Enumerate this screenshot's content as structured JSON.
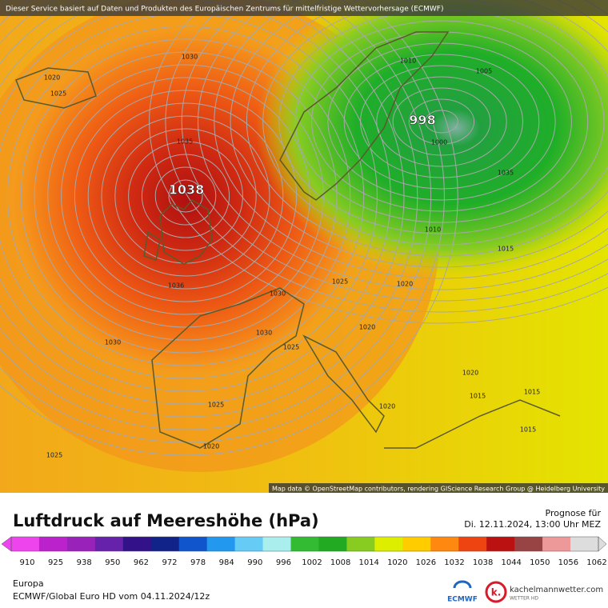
{
  "header": {
    "disclaimer": "Dieser Service basiert auf Daten und Produkten des Europäischen Zentrums für mittelfristige Wettervorhersage (ECMWF)"
  },
  "map": {
    "isobar_labels": [
      "1030",
      "1020",
      "1025",
      "1010",
      "1005",
      "998",
      "1035",
      "1000",
      "1035",
      "1038",
      "1010",
      "1015",
      "1036",
      "1025",
      "1020",
      "1030",
      "1030",
      "1030",
      "1025",
      "1020",
      "1020",
      "1015",
      "1015",
      "1025",
      "1020",
      "1015",
      "1020",
      "1025"
    ],
    "attribution": "Map data © OpenStreetMap contributors, rendering GIScience Research Group @ Heidelberg University"
  },
  "legend": {
    "title": "Luftdruck auf Meereshöhe (hPa)",
    "forecast_label": "Prognose für",
    "forecast_time": "Di. 12.11.2024, 13:00 Uhr MEZ",
    "ticks": [
      910,
      925,
      938,
      950,
      962,
      972,
      978,
      984,
      990,
      996,
      1002,
      1008,
      1014,
      1020,
      1026,
      1032,
      1038,
      1044,
      1050,
      1056,
      1062
    ],
    "colors": [
      "#ee44ee",
      "#bb22cc",
      "#9922bb",
      "#6622aa",
      "#331188",
      "#112288",
      "#1155cc",
      "#2299ee",
      "#66ccf5",
      "#aaeeee",
      "#33bb33",
      "#22aa22",
      "#88cc22",
      "#ddee00",
      "#ffcc00",
      "#ff8811",
      "#ee4411",
      "#bb1111",
      "#994444",
      "#ee9999",
      "#dddddd"
    ]
  },
  "footer": {
    "region": "Europa",
    "model": "ECMWF/Global Euro HD vom  04.11.2024/12z",
    "ecmwf_logo": "ECMWF",
    "site": "kachelmannwetter.com",
    "site_sub": "WETTER HD",
    "site_logo": "k."
  }
}
